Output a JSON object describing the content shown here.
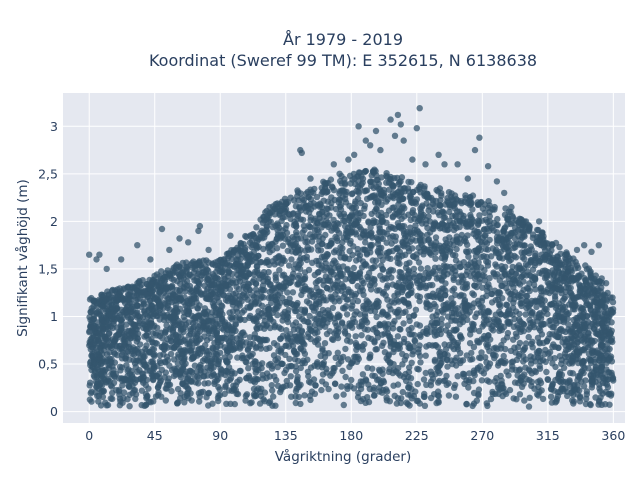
{
  "chart_data": {
    "type": "scatter",
    "title": [
      "År 1979 - 2019",
      "Koordinat (Sweref 99 TM): E 352615, N 6138638"
    ],
    "xlabel": "Vågriktning (grader)",
    "ylabel": "Signifikant våghöjd (m)",
    "xlim": [
      -18,
      368
    ],
    "ylim": [
      -0.12,
      3.35
    ],
    "xticks": [
      0,
      45,
      90,
      135,
      180,
      225,
      270,
      315,
      360
    ],
    "xtick_labels": [
      "0",
      "45",
      "90",
      "135",
      "180",
      "225",
      "270",
      "315",
      "360"
    ],
    "yticks": [
      0,
      0.5,
      1,
      1.5,
      2,
      2.5,
      3
    ],
    "ytick_labels": [
      "0",
      "0,5",
      "1",
      "1,5",
      "2",
      "2,5",
      "3"
    ],
    "grid": true,
    "marker_color": "#34566d",
    "background_color": "#e5e8f0",
    "envelope": {
      "x": [
        0,
        20,
        45,
        60,
        75,
        90,
        105,
        120,
        135,
        150,
        165,
        180,
        195,
        210,
        225,
        240,
        255,
        270,
        285,
        300,
        315,
        330,
        345,
        360
      ],
      "y": [
        1.2,
        1.3,
        1.45,
        1.55,
        1.6,
        1.6,
        1.8,
        2.1,
        2.3,
        2.35,
        2.45,
        2.5,
        2.55,
        2.5,
        2.4,
        2.35,
        2.3,
        2.25,
        2.15,
        2.0,
        1.85,
        1.65,
        1.5,
        1.2
      ]
    },
    "outliers": [
      {
        "x": 0,
        "y": 1.65
      },
      {
        "x": 5,
        "y": 1.6
      },
      {
        "x": 7,
        "y": 1.65
      },
      {
        "x": 12,
        "y": 1.5
      },
      {
        "x": 22,
        "y": 1.6
      },
      {
        "x": 33,
        "y": 1.75
      },
      {
        "x": 42,
        "y": 1.6
      },
      {
        "x": 50,
        "y": 1.92
      },
      {
        "x": 55,
        "y": 1.7
      },
      {
        "x": 62,
        "y": 1.82
      },
      {
        "x": 68,
        "y": 1.78
      },
      {
        "x": 75,
        "y": 1.9
      },
      {
        "x": 76,
        "y": 1.95
      },
      {
        "x": 82,
        "y": 1.7
      },
      {
        "x": 97,
        "y": 1.85
      },
      {
        "x": 145,
        "y": 2.75
      },
      {
        "x": 146,
        "y": 2.72
      },
      {
        "x": 152,
        "y": 2.45
      },
      {
        "x": 168,
        "y": 2.6
      },
      {
        "x": 172,
        "y": 2.5
      },
      {
        "x": 178,
        "y": 2.65
      },
      {
        "x": 182,
        "y": 2.7
      },
      {
        "x": 185,
        "y": 3.0
      },
      {
        "x": 190,
        "y": 2.85
      },
      {
        "x": 193,
        "y": 2.8
      },
      {
        "x": 197,
        "y": 2.95
      },
      {
        "x": 200,
        "y": 2.75
      },
      {
        "x": 207,
        "y": 3.07
      },
      {
        "x": 210,
        "y": 2.9
      },
      {
        "x": 212,
        "y": 3.12
      },
      {
        "x": 214,
        "y": 3.02
      },
      {
        "x": 216,
        "y": 2.85
      },
      {
        "x": 222,
        "y": 2.65
      },
      {
        "x": 225,
        "y": 2.98
      },
      {
        "x": 227,
        "y": 3.19
      },
      {
        "x": 231,
        "y": 2.6
      },
      {
        "x": 240,
        "y": 2.7
      },
      {
        "x": 244,
        "y": 2.6
      },
      {
        "x": 253,
        "y": 2.6
      },
      {
        "x": 260,
        "y": 2.45
      },
      {
        "x": 265,
        "y": 2.75
      },
      {
        "x": 268,
        "y": 2.88
      },
      {
        "x": 274,
        "y": 2.58
      },
      {
        "x": 280,
        "y": 2.42
      },
      {
        "x": 285,
        "y": 2.3
      },
      {
        "x": 290,
        "y": 2.15
      },
      {
        "x": 300,
        "y": 2.0
      },
      {
        "x": 309,
        "y": 2.0
      },
      {
        "x": 318,
        "y": 1.75
      },
      {
        "x": 323,
        "y": 1.73
      },
      {
        "x": 335,
        "y": 1.7
      },
      {
        "x": 340,
        "y": 1.75
      },
      {
        "x": 345,
        "y": 1.68
      },
      {
        "x": 350,
        "y": 1.75
      },
      {
        "x": 352,
        "y": 1.4
      },
      {
        "x": 355,
        "y": 1.35
      },
      {
        "x": 358,
        "y": 1.2
      }
    ]
  }
}
